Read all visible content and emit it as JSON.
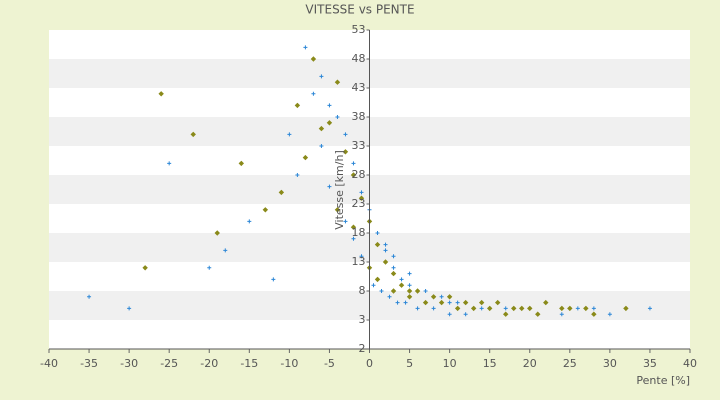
{
  "chart_data": {
    "type": "scatter",
    "title": "VITESSE vs PENTE",
    "x_label": "Pente [%]",
    "y_label": "Vitesse [km/h]",
    "xlim": [
      -40,
      40
    ],
    "xticks": [
      -40,
      -35,
      -30,
      -25,
      -20,
      -15,
      -10,
      -5,
      0,
      5,
      10,
      15,
      20,
      25,
      30,
      35,
      40
    ],
    "ylim": [
      -2,
      53
    ],
    "yticks": [
      -2,
      3,
      8,
      13,
      18,
      23,
      28,
      33,
      38,
      43,
      48,
      53
    ],
    "band_colors": [
      "#ffffff",
      "#f0f0f0"
    ],
    "series": [
      {
        "color": "#2b86d6",
        "marker": "plus",
        "x": [
          -8,
          -6,
          -5,
          -4,
          -3,
          -2,
          -1,
          0,
          1,
          2,
          3,
          4,
          5,
          6,
          7,
          8,
          9,
          10,
          11,
          12,
          13,
          14,
          15,
          16,
          17,
          18,
          20,
          22,
          24,
          26,
          28,
          30,
          35,
          -12,
          -15,
          -18,
          -20,
          -25,
          -30,
          -35,
          -10,
          -9,
          -7,
          -6,
          -5,
          -3,
          -2,
          -1,
          0.5,
          1.5,
          2.5,
          3.5,
          4.5,
          6,
          8,
          10,
          12,
          5,
          3,
          2
        ],
        "values": [
          50,
          45,
          40,
          38,
          35,
          30,
          25,
          22,
          18,
          15,
          12,
          10,
          9,
          8,
          8,
          7,
          7,
          6,
          6,
          6,
          5,
          5,
          5,
          6,
          5,
          5,
          5,
          6,
          4,
          5,
          5,
          4,
          5,
          10,
          20,
          15,
          12,
          30,
          5,
          7,
          35,
          28,
          42,
          33,
          26,
          20,
          17,
          14,
          9,
          8,
          7,
          6,
          6,
          5,
          5,
          4,
          4,
          11,
          14,
          16
        ]
      },
      {
        "color": "#8a8a1a",
        "marker": "diamond",
        "x": [
          -7,
          -6,
          -4,
          -3,
          -2,
          -1,
          0,
          1,
          2,
          3,
          4,
          5,
          6,
          8,
          10,
          12,
          14,
          16,
          18,
          20,
          22,
          25,
          28,
          32,
          -11,
          -13,
          -16,
          -19,
          -22,
          -26,
          -28,
          -9,
          -8,
          -5,
          -4,
          -2,
          0,
          1,
          3,
          5,
          7,
          9,
          11,
          13,
          15,
          17,
          19,
          21,
          24,
          27
        ],
        "values": [
          48,
          36,
          44,
          32,
          28,
          24,
          20,
          16,
          13,
          11,
          9,
          8,
          8,
          7,
          7,
          6,
          6,
          6,
          5,
          5,
          6,
          5,
          4,
          5,
          25,
          22,
          30,
          18,
          35,
          42,
          12,
          40,
          31,
          37,
          22,
          19,
          12,
          10,
          8,
          7,
          6,
          6,
          5,
          5,
          5,
          4,
          5,
          4,
          5,
          5
        ]
      }
    ]
  }
}
